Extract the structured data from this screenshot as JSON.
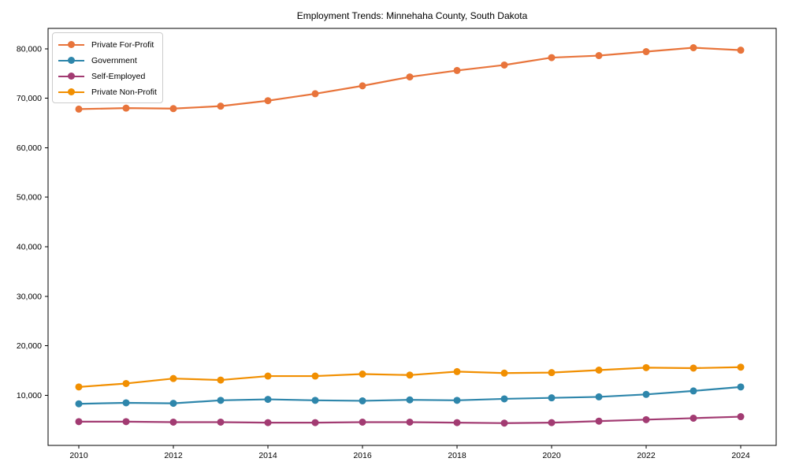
{
  "title": "Employment Trends: Minnehaha County, South Dakota",
  "chart_data": {
    "type": "line",
    "title": "Employment Trends: Minnehaha County, South Dakota",
    "xlabel": "",
    "ylabel": "",
    "grid": false,
    "legend_position": "upper left",
    "background": "#ffffff",
    "axis_color": "#000000",
    "x": [
      2010,
      2011,
      2012,
      2013,
      2014,
      2015,
      2016,
      2017,
      2018,
      2019,
      2020,
      2021,
      2022,
      2023,
      2024
    ],
    "series": [
      {
        "name": "Private For-Profit",
        "color": "#E8743B",
        "marker": "circle",
        "values": [
          67800,
          68000,
          67900,
          68400,
          69500,
          70900,
          72500,
          74300,
          75600,
          76700,
          78200,
          78600,
          79400,
          80200,
          79700
        ]
      },
      {
        "name": "Government",
        "color": "#2E86AB",
        "marker": "circle",
        "values": [
          8300,
          8500,
          8400,
          9000,
          9200,
          9000,
          8900,
          9100,
          9000,
          9300,
          9500,
          9700,
          10200,
          10900,
          11700
        ]
      },
      {
        "name": "Self-Employed",
        "color": "#A23B72",
        "marker": "circle",
        "values": [
          4700,
          4700,
          4600,
          4600,
          4500,
          4500,
          4600,
          4600,
          4500,
          4400,
          4500,
          4800,
          5100,
          5400,
          5700
        ]
      },
      {
        "name": "Private Non-Profit",
        "color": "#F18F01",
        "marker": "circle",
        "values": [
          11700,
          12400,
          13400,
          13100,
          13900,
          13900,
          14300,
          14100,
          14800,
          14500,
          14600,
          15100,
          15600,
          15500,
          15700
        ]
      }
    ],
    "xticks": [
      2010,
      2012,
      2014,
      2016,
      2018,
      2020,
      2022,
      2024
    ],
    "yticks": [
      10000,
      20000,
      30000,
      40000,
      50000,
      60000,
      70000,
      80000
    ],
    "ytick_labels": [
      "10,000",
      "20,000",
      "30,000",
      "40,000",
      "50,000",
      "60,000",
      "70,000",
      "80,000"
    ],
    "xlim": [
      2009.35,
      2024.75
    ],
    "ylim": [
      -100,
      84100
    ]
  }
}
